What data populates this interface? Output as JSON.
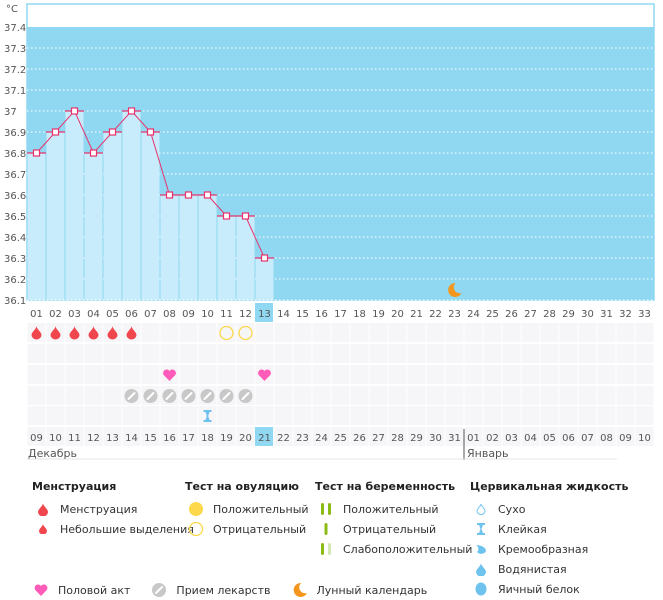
{
  "chart_data": {
    "type": "bar",
    "unit_label": "°C",
    "ylim": [
      36.1,
      37.4
    ],
    "yticks": [
      "37.4",
      "37.3",
      "37.2",
      "37.1",
      "37",
      "36.9",
      "36.8",
      "36.7",
      "36.6",
      "36.5",
      "36.4",
      "36.3",
      "36.2",
      "36.1"
    ],
    "cycle_days": [
      "01",
      "02",
      "03",
      "04",
      "05",
      "06",
      "07",
      "08",
      "09",
      "10",
      "11",
      "12",
      "13",
      "14",
      "15",
      "16",
      "17",
      "18",
      "19",
      "20",
      "21",
      "22",
      "23",
      "24",
      "25",
      "26",
      "27",
      "28",
      "29",
      "30",
      "31",
      "32",
      "33"
    ],
    "temperatures": [
      36.8,
      36.9,
      37.0,
      36.8,
      36.9,
      37.0,
      36.9,
      36.6,
      36.6,
      36.6,
      36.5,
      36.5,
      36.3
    ],
    "current_day_index": 12,
    "grid": true,
    "colors": {
      "plot_bg": "#90d8f2",
      "bar": "#c8ecfb",
      "line": "#e8336d",
      "today": "#90d8f2"
    }
  },
  "symptom_rows": {
    "menstruation": [
      0,
      1,
      2,
      3,
      4,
      5
    ],
    "ovulation_negative": [
      10,
      11
    ],
    "intercourse": [
      7,
      12
    ],
    "medication": [
      5,
      6,
      7,
      8,
      9,
      10,
      11
    ],
    "cervical_sticky": [
      9
    ],
    "moon_day_index": 22
  },
  "calendar_dates": [
    {
      "d": "09",
      "w": false
    },
    {
      "d": "10",
      "w": false
    },
    {
      "d": "11",
      "w": false
    },
    {
      "d": "12",
      "w": true
    },
    {
      "d": "13",
      "w": true
    },
    {
      "d": "14",
      "w": false
    },
    {
      "d": "15",
      "w": false
    },
    {
      "d": "16",
      "w": false
    },
    {
      "d": "17",
      "w": false
    },
    {
      "d": "18",
      "w": false
    },
    {
      "d": "19",
      "w": true
    },
    {
      "d": "20",
      "w": true
    },
    {
      "d": "21",
      "w": false
    },
    {
      "d": "22",
      "w": false
    },
    {
      "d": "23",
      "w": false
    },
    {
      "d": "24",
      "w": false
    },
    {
      "d": "25",
      "w": false
    },
    {
      "d": "26",
      "w": true
    },
    {
      "d": "27",
      "w": true
    },
    {
      "d": "28",
      "w": false
    },
    {
      "d": "29",
      "w": false
    },
    {
      "d": "30",
      "w": false
    },
    {
      "d": "31",
      "w": false
    },
    {
      "d": "01",
      "w": false
    },
    {
      "d": "02",
      "w": true
    },
    {
      "d": "03",
      "w": true
    },
    {
      "d": "04",
      "w": false
    },
    {
      "d": "05",
      "w": false
    },
    {
      "d": "06",
      "w": false
    },
    {
      "d": "07",
      "w": false
    },
    {
      "d": "08",
      "w": false
    },
    {
      "d": "09",
      "w": true
    },
    {
      "d": "10",
      "w": true
    }
  ],
  "months": {
    "first": "Декабрь",
    "second": "Январь"
  },
  "legend": {
    "menstruation": {
      "title": "Менструация",
      "items": [
        "Менструация",
        "Небольшие выделения"
      ]
    },
    "ovulation": {
      "title": "Тест на овуляцию",
      "items": [
        "Положительный",
        "Отрицательный"
      ]
    },
    "pregnancy": {
      "title": "Тест на беременность",
      "items": [
        "Положительный",
        "Отрицательный",
        "Слабоположительный"
      ]
    },
    "cervical": {
      "title": "Цервикальная жидкость",
      "items": [
        "Сухо",
        "Клейкая",
        "Кремообразная",
        "Водянистая",
        "Яичный белок"
      ]
    },
    "other": [
      "Половой акт",
      "Прием лекарств",
      "Лунный календарь"
    ]
  }
}
